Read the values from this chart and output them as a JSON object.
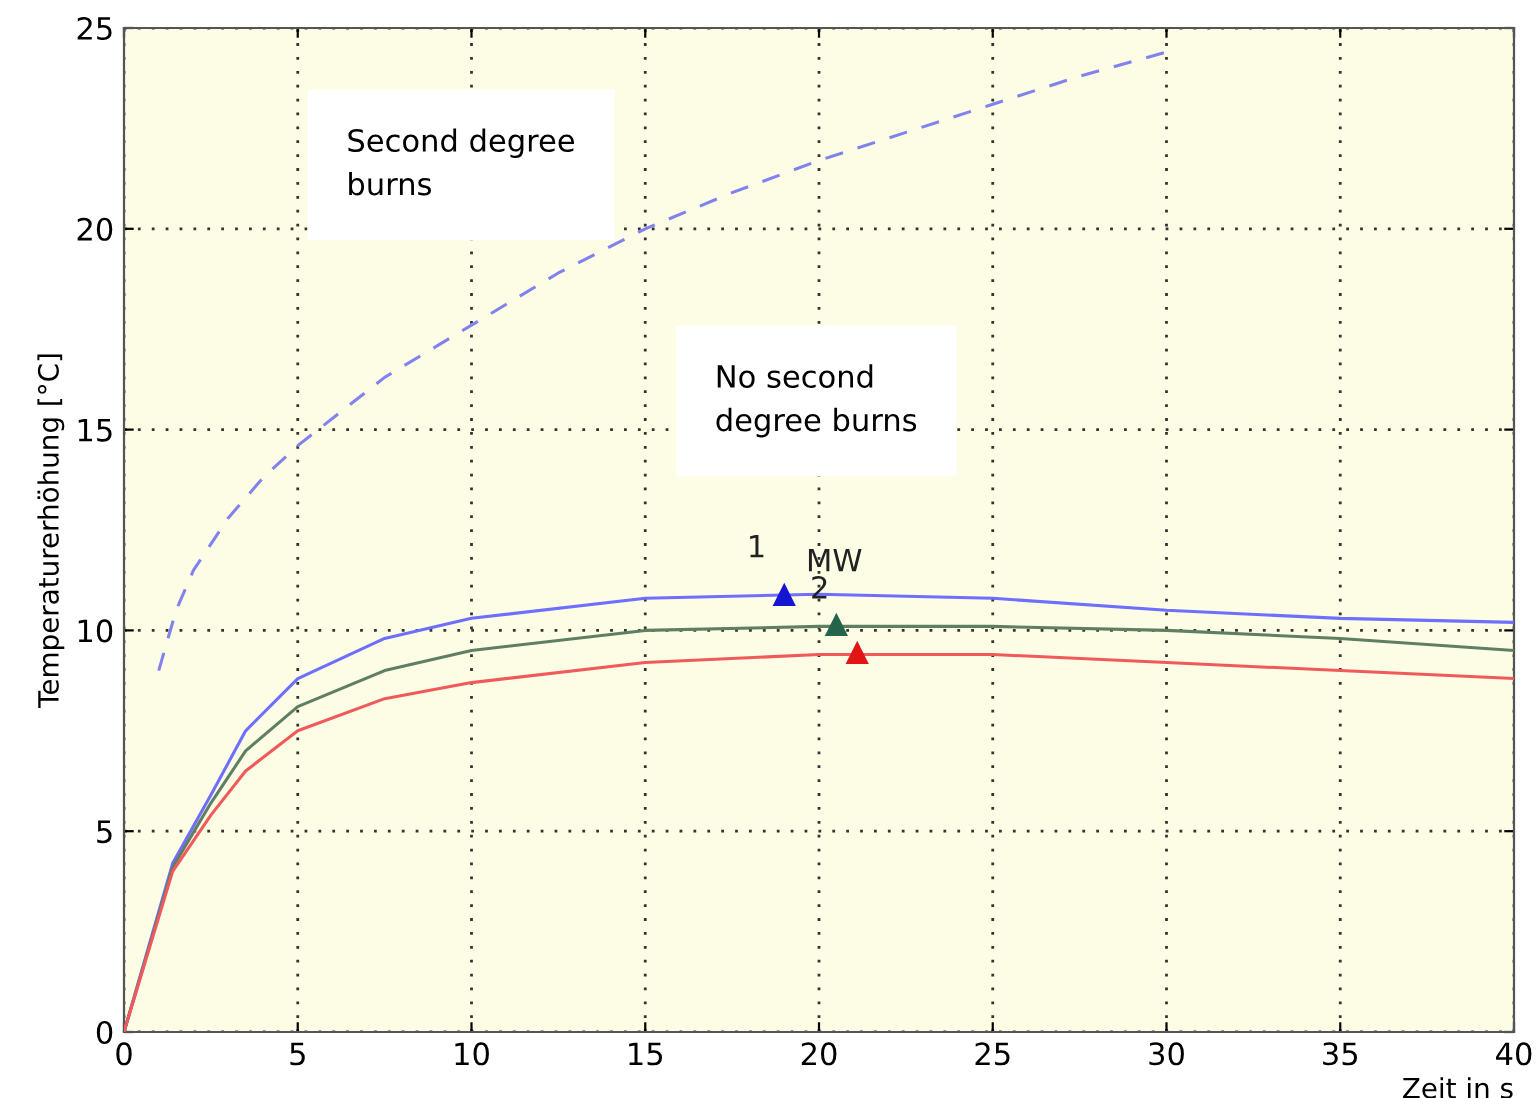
{
  "chart_data": {
    "type": "line",
    "xlabel": "Zeit in s",
    "ylabel": "Temperaturerhöhung [°C]",
    "xlim": [
      0,
      40
    ],
    "ylim": [
      0,
      25
    ],
    "xticks": [
      0,
      5,
      10,
      15,
      20,
      25,
      30,
      35,
      40
    ],
    "yticks": [
      0,
      5,
      10,
      15,
      20,
      25
    ],
    "grid": true,
    "series": [
      {
        "color": "#8282ee",
        "line_style": "dashed",
        "x": [
          1,
          1.5,
          2,
          3,
          4,
          5,
          7.5,
          10,
          12.5,
          15,
          17.5,
          20,
          22.5,
          25,
          27.5,
          30
        ],
        "values": [
          9.0,
          10.5,
          11.5,
          12.8,
          13.8,
          14.6,
          16.3,
          17.6,
          18.9,
          20.0,
          20.9,
          21.7,
          22.4,
          23.1,
          23.8,
          24.4
        ]
      },
      {
        "color": "#6e6eff",
        "line_style": "solid",
        "x": [
          0,
          1.4,
          2.5,
          3.5,
          5,
          7.5,
          10,
          15,
          20,
          25,
          30,
          35,
          40
        ],
        "values": [
          0,
          4.2,
          5.9,
          7.5,
          8.8,
          9.8,
          10.3,
          10.8,
          10.9,
          10.8,
          10.5,
          10.3,
          10.2
        ]
      },
      {
        "color": "#5f7f62",
        "line_style": "solid",
        "x": [
          0,
          1.4,
          2.5,
          3.5,
          5,
          7.5,
          10,
          15,
          20,
          25,
          30,
          35,
          40
        ],
        "values": [
          0,
          4.1,
          5.7,
          7.0,
          8.1,
          9.0,
          9.5,
          10.0,
          10.1,
          10.1,
          10.0,
          9.8,
          9.5
        ]
      },
      {
        "color": "#f05a5a",
        "line_style": "solid",
        "x": [
          0,
          1.4,
          2.5,
          3.5,
          5,
          7.5,
          10,
          15,
          20,
          25,
          30,
          35,
          40
        ],
        "values": [
          0,
          4.0,
          5.4,
          6.5,
          7.5,
          8.3,
          8.7,
          9.2,
          9.4,
          9.4,
          9.2,
          9.0,
          8.8
        ]
      },
      {
        "type": "scatter",
        "marker": "triangle",
        "color": "#1414d2",
        "x": [
          19.0
        ],
        "values": [
          10.9
        ]
      },
      {
        "type": "scatter",
        "marker": "triangle",
        "color": "#24644a",
        "x": [
          20.5
        ],
        "values": [
          10.15
        ]
      },
      {
        "type": "scatter",
        "marker": "triangle",
        "color": "#e21414",
        "x": [
          21.1
        ],
        "values": [
          9.45
        ]
      }
    ],
    "annotations": [
      "Second degree\nburns",
      "No second\ndegree burns",
      "1",
      "2",
      "MW"
    ]
  }
}
